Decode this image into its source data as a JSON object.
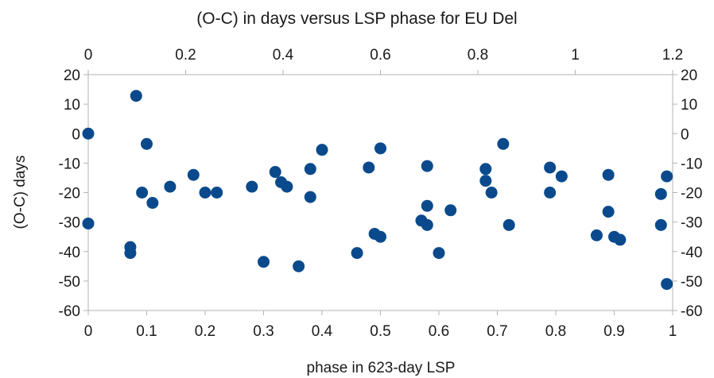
{
  "chart_data": {
    "type": "scatter",
    "title": "(O-C) in days versus LSP phase for EU Del",
    "xlabel": "phase in 623-day LSP",
    "ylabel": "(O-C) days",
    "xlim": [
      0,
      1
    ],
    "ylim": [
      -60,
      20
    ],
    "x_ticks": [
      "0",
      "0.1",
      "0.2",
      "0.3",
      "0.4",
      "0.5",
      "0.6",
      "0.7",
      "0.8",
      "0.9",
      "1"
    ],
    "y_ticks": [
      "20",
      "10",
      "0",
      "-10",
      "-20",
      "-30",
      "-40",
      "-50",
      "-60"
    ],
    "x2lim": [
      0,
      1.2
    ],
    "x2_ticks": [
      "0",
      "0.2",
      "0.4",
      "0.6",
      "0.8",
      "1",
      "1.2"
    ],
    "y2_ticks": [
      "20",
      "10",
      "0",
      "-10",
      "-20",
      "-30",
      "-40",
      "-50",
      "-60"
    ],
    "grid": false,
    "marker_color": "#0a4a8c",
    "series": [
      {
        "points": [
          [
            0.0,
            0
          ],
          [
            0.0,
            -30.5
          ],
          [
            0.072,
            -38.5
          ],
          [
            0.072,
            -40.5
          ],
          [
            0.082,
            12.8
          ],
          [
            0.092,
            -20
          ],
          [
            0.1,
            -3.5
          ],
          [
            0.11,
            -23.5
          ],
          [
            0.14,
            -18
          ],
          [
            0.18,
            -14
          ],
          [
            0.2,
            -20
          ],
          [
            0.22,
            -20
          ],
          [
            0.28,
            -18
          ],
          [
            0.3,
            -43.5
          ],
          [
            0.32,
            -13
          ],
          [
            0.33,
            -16.5
          ],
          [
            0.34,
            -18
          ],
          [
            0.36,
            -45
          ],
          [
            0.38,
            -12
          ],
          [
            0.38,
            -21.5
          ],
          [
            0.4,
            -5.5
          ],
          [
            0.46,
            -40.5
          ],
          [
            0.48,
            -11.5
          ],
          [
            0.49,
            -34
          ],
          [
            0.5,
            -35
          ],
          [
            0.5,
            -5
          ],
          [
            0.57,
            -29.5
          ],
          [
            0.58,
            -11
          ],
          [
            0.58,
            -24.5
          ],
          [
            0.58,
            -31
          ],
          [
            0.6,
            -40.5
          ],
          [
            0.62,
            -26
          ],
          [
            0.68,
            -12
          ],
          [
            0.68,
            -16
          ],
          [
            0.69,
            -20
          ],
          [
            0.71,
            -3.5
          ],
          [
            0.72,
            -31
          ],
          [
            0.79,
            -11.5
          ],
          [
            0.79,
            -20
          ],
          [
            0.81,
            -14.5
          ],
          [
            0.87,
            -34.5
          ],
          [
            0.89,
            -14
          ],
          [
            0.89,
            -26.5
          ],
          [
            0.9,
            -35
          ],
          [
            0.91,
            -36
          ],
          [
            0.98,
            -20.5
          ],
          [
            0.98,
            -31
          ],
          [
            0.99,
            -51
          ],
          [
            0.99,
            -14.5
          ]
        ]
      }
    ]
  }
}
